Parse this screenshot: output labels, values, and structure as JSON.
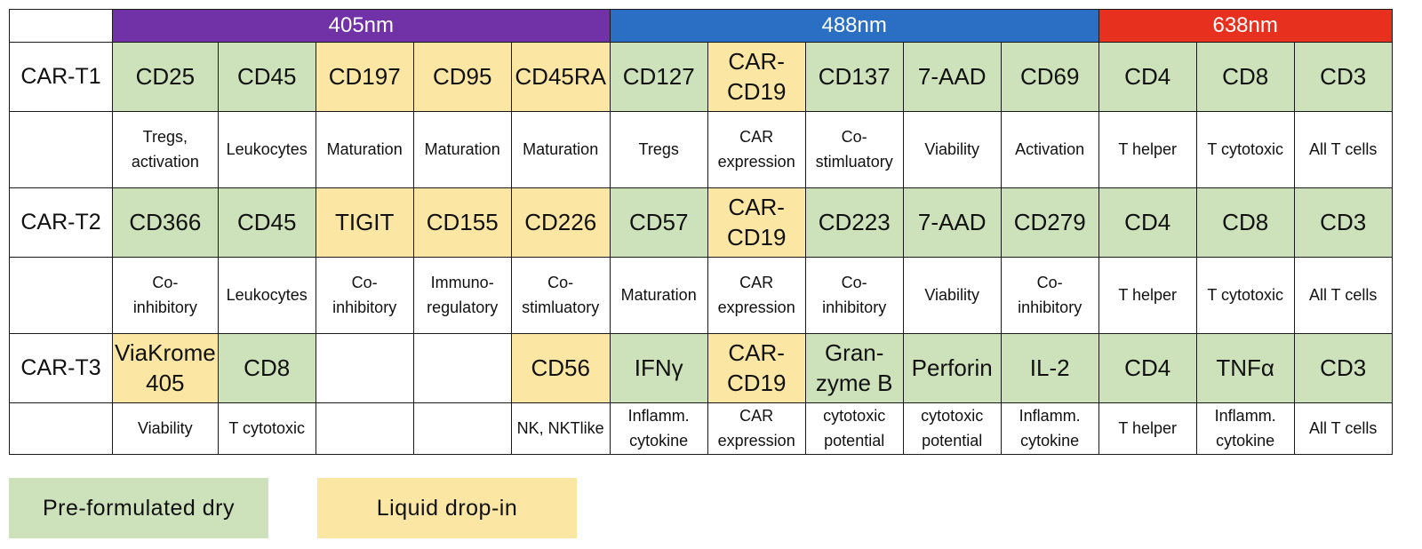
{
  "header": {
    "lasers": [
      {
        "label": "405nm",
        "color": "#7132a8"
      },
      {
        "label": "488nm",
        "color": "#2b6fc5"
      },
      {
        "label": "638nm",
        "color": "#e8301f"
      }
    ]
  },
  "panels": [
    {
      "name": "CAR-T1",
      "markers": [
        {
          "text": "CD25",
          "format": "Pre-formulated dry"
        },
        {
          "text": "CD45",
          "format": "Pre-formulated dry"
        },
        {
          "text": "CD197",
          "format": "Liquid drop-in"
        },
        {
          "text": "CD95",
          "format": "Liquid drop-in"
        },
        {
          "text": "CD45RA",
          "format": "Liquid drop-in"
        },
        {
          "text": "CD127",
          "format": "Pre-formulated dry"
        },
        {
          "text": "CAR-\nCD19",
          "format": "Liquid drop-in"
        },
        {
          "text": "CD137",
          "format": "Pre-formulated dry"
        },
        {
          "text": "7-AAD",
          "format": "Pre-formulated dry"
        },
        {
          "text": "CD69",
          "format": "Pre-formulated dry"
        },
        {
          "text": "CD4",
          "format": "Pre-formulated dry"
        },
        {
          "text": "CD8",
          "format": "Pre-formulated dry"
        },
        {
          "text": "CD3",
          "format": "Pre-formulated dry"
        }
      ],
      "descriptions": [
        "Tregs,\nactivation",
        "Leukocytes",
        "Maturation",
        "Maturation",
        "Maturation",
        "Tregs",
        "CAR\nexpression",
        "Co-\nstimluatory",
        "Viability",
        "Activation",
        "T helper",
        "T cytotoxic",
        "All T cells"
      ]
    },
    {
      "name": "CAR-T2",
      "markers": [
        {
          "text": "CD366",
          "format": "Pre-formulated dry"
        },
        {
          "text": "CD45",
          "format": "Pre-formulated dry"
        },
        {
          "text": "TIGIT",
          "format": "Liquid drop-in"
        },
        {
          "text": "CD155",
          "format": "Liquid drop-in"
        },
        {
          "text": "CD226",
          "format": "Liquid drop-in"
        },
        {
          "text": "CD57",
          "format": "Pre-formulated dry"
        },
        {
          "text": "CAR-\nCD19",
          "format": "Liquid drop-in"
        },
        {
          "text": "CD223",
          "format": "Pre-formulated dry"
        },
        {
          "text": "7-AAD",
          "format": "Pre-formulated dry"
        },
        {
          "text": "CD279",
          "format": "Pre-formulated dry"
        },
        {
          "text": "CD4",
          "format": "Pre-formulated dry"
        },
        {
          "text": "CD8",
          "format": "Pre-formulated dry"
        },
        {
          "text": "CD3",
          "format": "Pre-formulated dry"
        }
      ],
      "descriptions": [
        "Co-\ninhibitory",
        "Leukocytes",
        "Co-\ninhibitory",
        "Immuno-\nregulatory",
        "Co-\nstimluatory",
        "Maturation",
        "CAR\nexpression",
        "Co-\ninhibitory",
        "Viability",
        "Co-\ninhibitory",
        "T helper",
        "T cytotoxic",
        "All T cells"
      ]
    },
    {
      "name": "CAR-T3",
      "markers": [
        {
          "text": "ViaKrome\n405",
          "format": "Liquid drop-in"
        },
        {
          "text": "CD8",
          "format": "Pre-formulated dry"
        },
        {
          "text": "",
          "format": "none"
        },
        {
          "text": "",
          "format": "none"
        },
        {
          "text": "CD56",
          "format": "Liquid drop-in"
        },
        {
          "text": "IFNγ",
          "format": "Pre-formulated dry"
        },
        {
          "text": "CAR-\nCD19",
          "format": "Liquid drop-in"
        },
        {
          "text": "Gran-\nzyme B",
          "format": "Pre-formulated dry"
        },
        {
          "text": "Perforin",
          "format": "Pre-formulated dry"
        },
        {
          "text": "IL-2",
          "format": "Pre-formulated dry"
        },
        {
          "text": "CD4",
          "format": "Pre-formulated dry"
        },
        {
          "text": "TNFα",
          "format": "Pre-formulated dry"
        },
        {
          "text": "CD3",
          "format": "Pre-formulated dry"
        }
      ],
      "descriptions": [
        "Viability",
        "T cytotoxic",
        "",
        "",
        "NK, NKTlike",
        "Inflamm.\ncytokine",
        "CAR\nexpression",
        "cytotoxic\npotential",
        "cytotoxic\npotential",
        "Inflamm.\ncytokine",
        "T helper",
        "Inflamm.\ncytokine",
        "All T cells"
      ]
    }
  ],
  "legend": [
    {
      "label": "Pre-formulated dry",
      "color": "#cde2bb"
    },
    {
      "label": "Liquid drop-in",
      "color": "#fbe6a3"
    }
  ]
}
